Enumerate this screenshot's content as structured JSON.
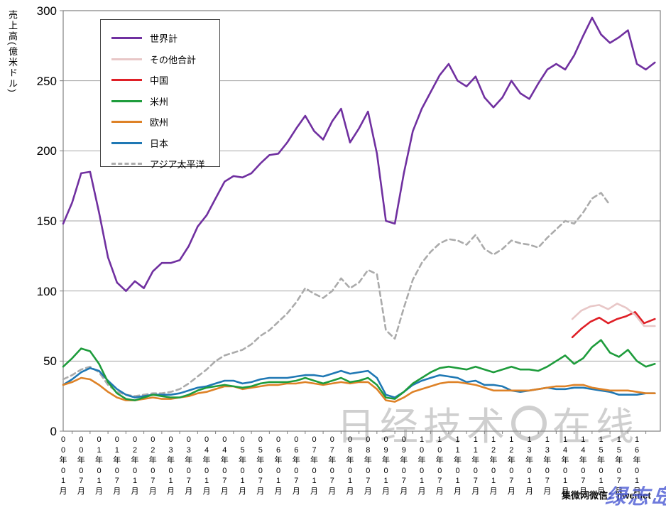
{
  "y_axis": {
    "title": "売上高(億米ドル)",
    "tick_values": [
      0,
      50,
      100,
      150,
      200,
      250,
      300
    ]
  },
  "x_axis": {
    "labels": [
      "00年01月",
      "00年07月",
      "01年01月",
      "01年07月",
      "02年01月",
      "02年07月",
      "03年01月",
      "03年07月",
      "04年01月",
      "04年07月",
      "05年01月",
      "05年07月",
      "06年01月",
      "06年07月",
      "07年01月",
      "07年07月",
      "08年01月",
      "08年07月",
      "09年01月",
      "09年07月",
      "10年01月",
      "10年07月",
      "11年01月",
      "11年07月",
      "12年01月",
      "12年07月",
      "13年01月",
      "13年07月",
      "14年01月",
      "14年07月",
      "15年01月",
      "15年07月",
      "16年01月"
    ]
  },
  "watermark_center": {
    "part1": "日经技术",
    "part2": "在线"
  },
  "watermark_bottom": {
    "black": "集微网微信：jiweinet",
    "blue": "绿志岛"
  },
  "chart_data": {
    "type": "line",
    "title": "",
    "ylabel": "売上高(億米ドル)",
    "xlabel": "",
    "ylim": [
      0,
      300
    ],
    "x_unit": "decimal_year",
    "x_range_shown": [
      2000.0,
      2016.6
    ],
    "grid": "horizontal",
    "legend_position": "upper-left-box",
    "x_shared": [
      2000,
      2000.25,
      2000.5,
      2000.75,
      2001,
      2001.25,
      2001.5,
      2001.75,
      2002,
      2002.25,
      2002.5,
      2002.75,
      2003,
      2003.25,
      2003.5,
      2003.75,
      2004,
      2004.25,
      2004.5,
      2004.75,
      2005,
      2005.25,
      2005.5,
      2005.75,
      2006,
      2006.25,
      2006.5,
      2006.75,
      2007,
      2007.25,
      2007.5,
      2007.75,
      2008,
      2008.25,
      2008.5,
      2008.75,
      2009,
      2009.25,
      2009.5,
      2009.75,
      2010,
      2010.25,
      2010.5,
      2010.75,
      2011,
      2011.25,
      2011.5,
      2011.75,
      2012,
      2012.25,
      2012.5,
      2012.75,
      2013,
      2013.25,
      2013.5,
      2013.75,
      2014,
      2014.25,
      2014.5,
      2014.75,
      2015,
      2015.25,
      2015.5,
      2015.75,
      2016,
      2016.25,
      2016.5
    ],
    "x_asia": [
      2000,
      2000.25,
      2000.5,
      2000.75,
      2001,
      2001.25,
      2001.5,
      2001.75,
      2002,
      2002.25,
      2002.5,
      2002.75,
      2003,
      2003.25,
      2003.5,
      2003.75,
      2004,
      2004.25,
      2004.5,
      2004.75,
      2005,
      2005.25,
      2005.5,
      2005.75,
      2006,
      2006.25,
      2006.5,
      2006.75,
      2007,
      2007.25,
      2007.5,
      2007.75,
      2008,
      2008.25,
      2008.5,
      2008.75,
      2009,
      2009.25,
      2009.5,
      2009.75,
      2010,
      2010.25,
      2010.5,
      2010.75,
      2011,
      2011.25,
      2011.5,
      2011.75,
      2012,
      2012.25,
      2012.5,
      2012.75,
      2013,
      2013.25,
      2013.5,
      2013.75,
      2014,
      2014.25,
      2014.5,
      2014.75,
      2015,
      2015.2
    ],
    "x_china": [
      2014.2,
      2014.45,
      2014.7,
      2014.95,
      2015.2,
      2015.45,
      2015.7,
      2015.95,
      2016.2,
      2016.5
    ],
    "series": [
      {
        "name": "世界計",
        "color": "#7030A0",
        "dashed": false,
        "x_ref": "x_shared",
        "y": [
          148,
          163,
          184,
          185,
          156,
          124,
          106,
          100,
          107,
          102,
          114,
          120,
          120,
          122,
          132,
          146,
          154,
          166,
          178,
          182,
          181,
          184,
          191,
          197,
          198,
          206,
          216,
          225,
          214,
          208,
          221,
          230,
          206,
          216,
          228,
          198,
          150,
          148,
          184,
          214,
          230,
          242,
          254,
          262,
          250,
          246,
          253,
          238,
          231,
          238,
          250,
          241,
          237,
          248,
          258,
          262,
          258,
          268,
          282,
          295,
          283,
          277,
          281,
          286,
          262,
          258,
          263
        ]
      },
      {
        "name": "その他合計",
        "color": "#E8C7C7",
        "dashed": false,
        "x_ref": "x_china",
        "y": [
          80,
          86,
          89,
          90,
          87,
          91,
          88,
          83,
          75,
          75
        ]
      },
      {
        "name": "中国",
        "color": "#DF1F26",
        "dashed": false,
        "x_ref": "x_china",
        "y": [
          67,
          73,
          78,
          81,
          77,
          80,
          82,
          85,
          77,
          80
        ]
      },
      {
        "name": "米州",
        "color": "#1E9C3C",
        "dashed": false,
        "x_ref": "x_shared",
        "y": [
          46,
          52,
          59,
          57,
          48,
          35,
          27,
          23,
          22,
          24,
          26,
          25,
          24,
          24,
          26,
          29,
          31,
          32,
          33,
          32,
          31,
          32,
          34,
          35,
          35,
          35,
          36,
          38,
          36,
          34,
          36,
          38,
          35,
          36,
          38,
          33,
          24,
          23,
          28,
          34,
          38,
          42,
          45,
          46,
          45,
          44,
          46,
          44,
          42,
          44,
          46,
          44,
          44,
          43,
          46,
          50,
          54,
          48,
          52,
          60,
          65,
          56,
          53,
          58,
          50,
          46,
          48
        ]
      },
      {
        "name": "欧州",
        "color": "#DE8227",
        "dashed": false,
        "x_ref": "x_shared",
        "y": [
          33,
          35,
          38,
          37,
          33,
          28,
          24,
          22,
          22,
          23,
          24,
          23,
          23,
          24,
          25,
          27,
          28,
          30,
          32,
          32,
          30,
          31,
          32,
          33,
          33,
          34,
          34,
          35,
          34,
          33,
          34,
          35,
          34,
          35,
          35,
          30,
          22,
          21,
          24,
          28,
          30,
          32,
          34,
          35,
          35,
          34,
          33,
          31,
          29,
          29,
          29,
          29,
          29,
          30,
          31,
          32,
          32,
          33,
          33,
          31,
          30,
          29,
          29,
          29,
          28,
          27,
          27
        ]
      },
      {
        "name": "日本",
        "color": "#1F78B4",
        "dashed": false,
        "x_ref": "x_shared",
        "y": [
          33,
          37,
          42,
          45,
          43,
          36,
          30,
          26,
          24,
          25,
          26,
          26,
          26,
          27,
          29,
          31,
          32,
          34,
          36,
          36,
          34,
          35,
          37,
          38,
          38,
          38,
          39,
          40,
          40,
          39,
          41,
          43,
          41,
          42,
          43,
          38,
          26,
          24,
          28,
          33,
          36,
          38,
          40,
          39,
          38,
          35,
          36,
          33,
          33,
          32,
          29,
          28,
          29,
          30,
          31,
          30,
          30,
          31,
          31,
          30,
          29,
          28,
          26,
          26,
          26,
          27,
          27
        ]
      },
      {
        "name": "アジア太平洋",
        "color": "#ABABAB",
        "dashed": true,
        "x_ref": "x_asia",
        "y": [
          37,
          40,
          44,
          46,
          42,
          33,
          28,
          26,
          25,
          26,
          27,
          27,
          28,
          30,
          34,
          39,
          44,
          50,
          54,
          56,
          58,
          62,
          68,
          72,
          78,
          84,
          92,
          102,
          98,
          95,
          100,
          109,
          102,
          106,
          115,
          112,
          72,
          66,
          88,
          108,
          120,
          128,
          134,
          137,
          136,
          133,
          140,
          130,
          126,
          130,
          136,
          134,
          133,
          131,
          138,
          144,
          150,
          148,
          156,
          166,
          170,
          163
        ]
      }
    ]
  }
}
